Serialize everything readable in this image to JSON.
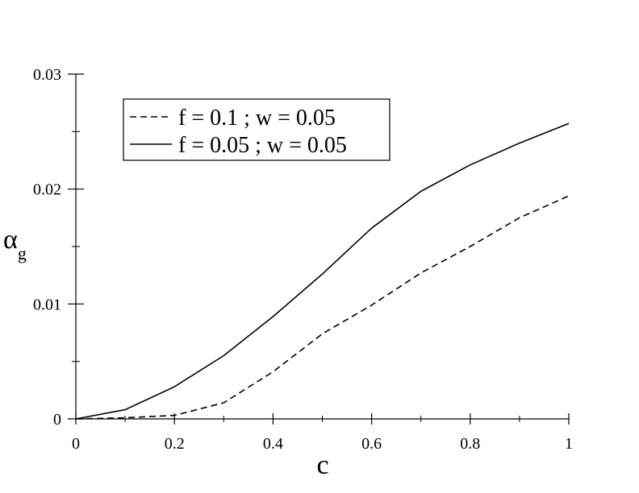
{
  "chart_data": {
    "type": "line",
    "xlabel": "c",
    "ylabel": "α",
    "ylabel_subscript": "g",
    "xlim": [
      0,
      1
    ],
    "ylim": [
      0,
      0.03
    ],
    "x_ticks": [
      "0",
      "0.2",
      "0.4",
      "0.6",
      "0.8",
      "1"
    ],
    "x_tick_values": [
      0,
      0.2,
      0.4,
      0.6,
      0.8,
      1
    ],
    "x_minor_ticks": [
      0.1,
      0.3,
      0.5,
      0.7,
      0.9
    ],
    "y_ticks": [
      "0",
      "0.01",
      "0.02",
      "0.03"
    ],
    "y_tick_values": [
      0,
      0.01,
      0.02,
      0.03
    ],
    "y_minor_ticks": [
      0.005,
      0.015,
      0.025
    ],
    "grid": false,
    "legend_position": "top-left",
    "series": [
      {
        "name": "f = 0.1 ; w = 0.05",
        "style": "dashed",
        "color": "#000000",
        "x": [
          0,
          0.1,
          0.2,
          0.3,
          0.4,
          0.5,
          0.6,
          0.7,
          0.8,
          0.9,
          1.0
        ],
        "values": [
          0,
          0.0001,
          0.0003,
          0.0014,
          0.0041,
          0.0074,
          0.0099,
          0.0127,
          0.015,
          0.0175,
          0.0194
        ]
      },
      {
        "name": "f = 0.05 ; w = 0.05",
        "style": "solid",
        "color": "#000000",
        "x": [
          0,
          0.1,
          0.2,
          0.3,
          0.4,
          0.5,
          0.6,
          0.7,
          0.8,
          0.9,
          1.0
        ],
        "values": [
          0,
          0.0008,
          0.0028,
          0.0055,
          0.0089,
          0.0126,
          0.0166,
          0.0198,
          0.0221,
          0.024,
          0.0257
        ]
      }
    ]
  }
}
